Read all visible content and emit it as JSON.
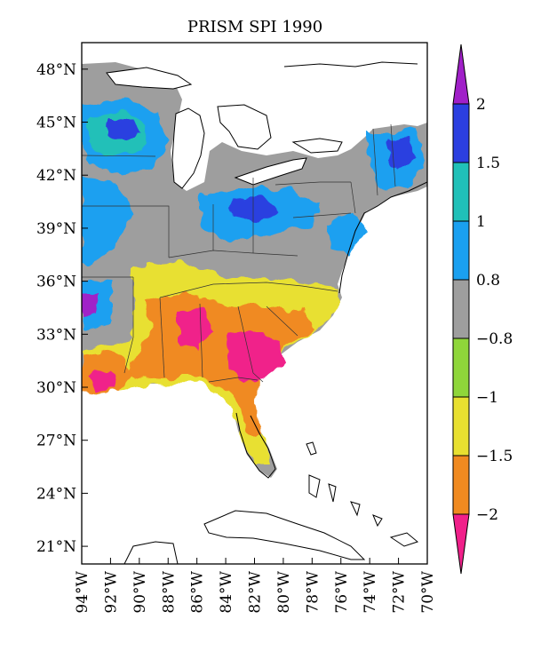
{
  "title": "PRISM SPI 1990",
  "map": {
    "lat_labels": [
      "48°N",
      "45°N",
      "42°N",
      "39°N",
      "36°N",
      "33°N",
      "30°N",
      "27°N",
      "24°N",
      "21°N"
    ],
    "lat_values": [
      48,
      45,
      42,
      39,
      36,
      33,
      30,
      27,
      24,
      21
    ],
    "lon_labels": [
      "94°W",
      "92°W",
      "90°W",
      "88°W",
      "86°W",
      "84°W",
      "82°W",
      "80°W",
      "78°W",
      "76°W",
      "74°W",
      "72°W",
      "70°W"
    ],
    "lon_values": [
      -94,
      -92,
      -90,
      -88,
      -86,
      -84,
      -82,
      -80,
      -78,
      -76,
      -74,
      -72,
      -70
    ],
    "extent": {
      "lon": [
        -94,
        -70
      ],
      "lat": [
        20,
        49.5
      ]
    }
  },
  "colorbar": {
    "labels": [
      "2",
      "1.5",
      "1",
      "0.8",
      "−0.8",
      "−1",
      "−1.5",
      "−2"
    ],
    "colors": {
      "above_2": "#a020c8",
      "1.5_to_2": "#2b3fe0",
      "1_to_1.5": "#20c0b8",
      "0.8_to_1": "#1aa0f0",
      "-0.8_to_0.8": "#9e9e9e",
      "-1_to_-0.8": "#8fd63a",
      "-1.5_to_-1": "#e8e030",
      "-2_to_-1.5": "#f08a20",
      "below_-2": "#f0208a"
    }
  }
}
